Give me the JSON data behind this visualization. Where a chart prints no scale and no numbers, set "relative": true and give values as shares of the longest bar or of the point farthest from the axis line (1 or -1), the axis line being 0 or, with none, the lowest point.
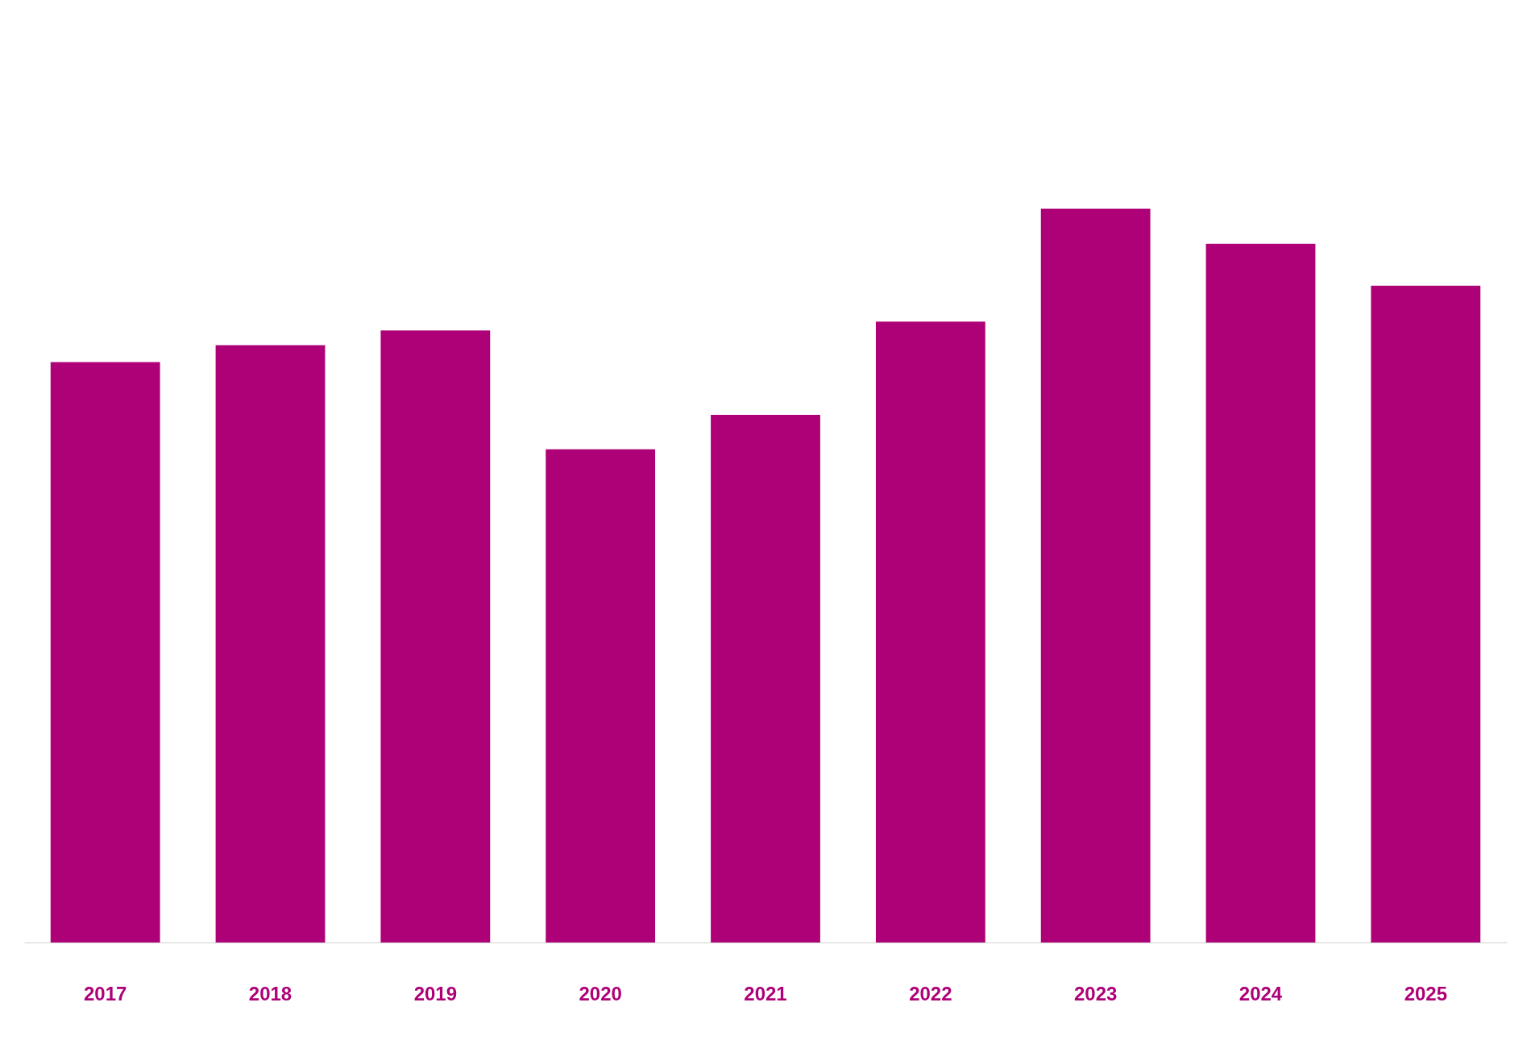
{
  "chart_data": {
    "type": "bar",
    "relative": true,
    "categories": [
      "2017",
      "2018",
      "2019",
      "2020",
      "2021",
      "2022",
      "2023",
      "2024",
      "2025"
    ],
    "values": [
      0.791,
      0.814,
      0.834,
      0.672,
      0.719,
      0.846,
      1,
      0.952,
      0.895
    ],
    "color": "#ae0077"
  }
}
